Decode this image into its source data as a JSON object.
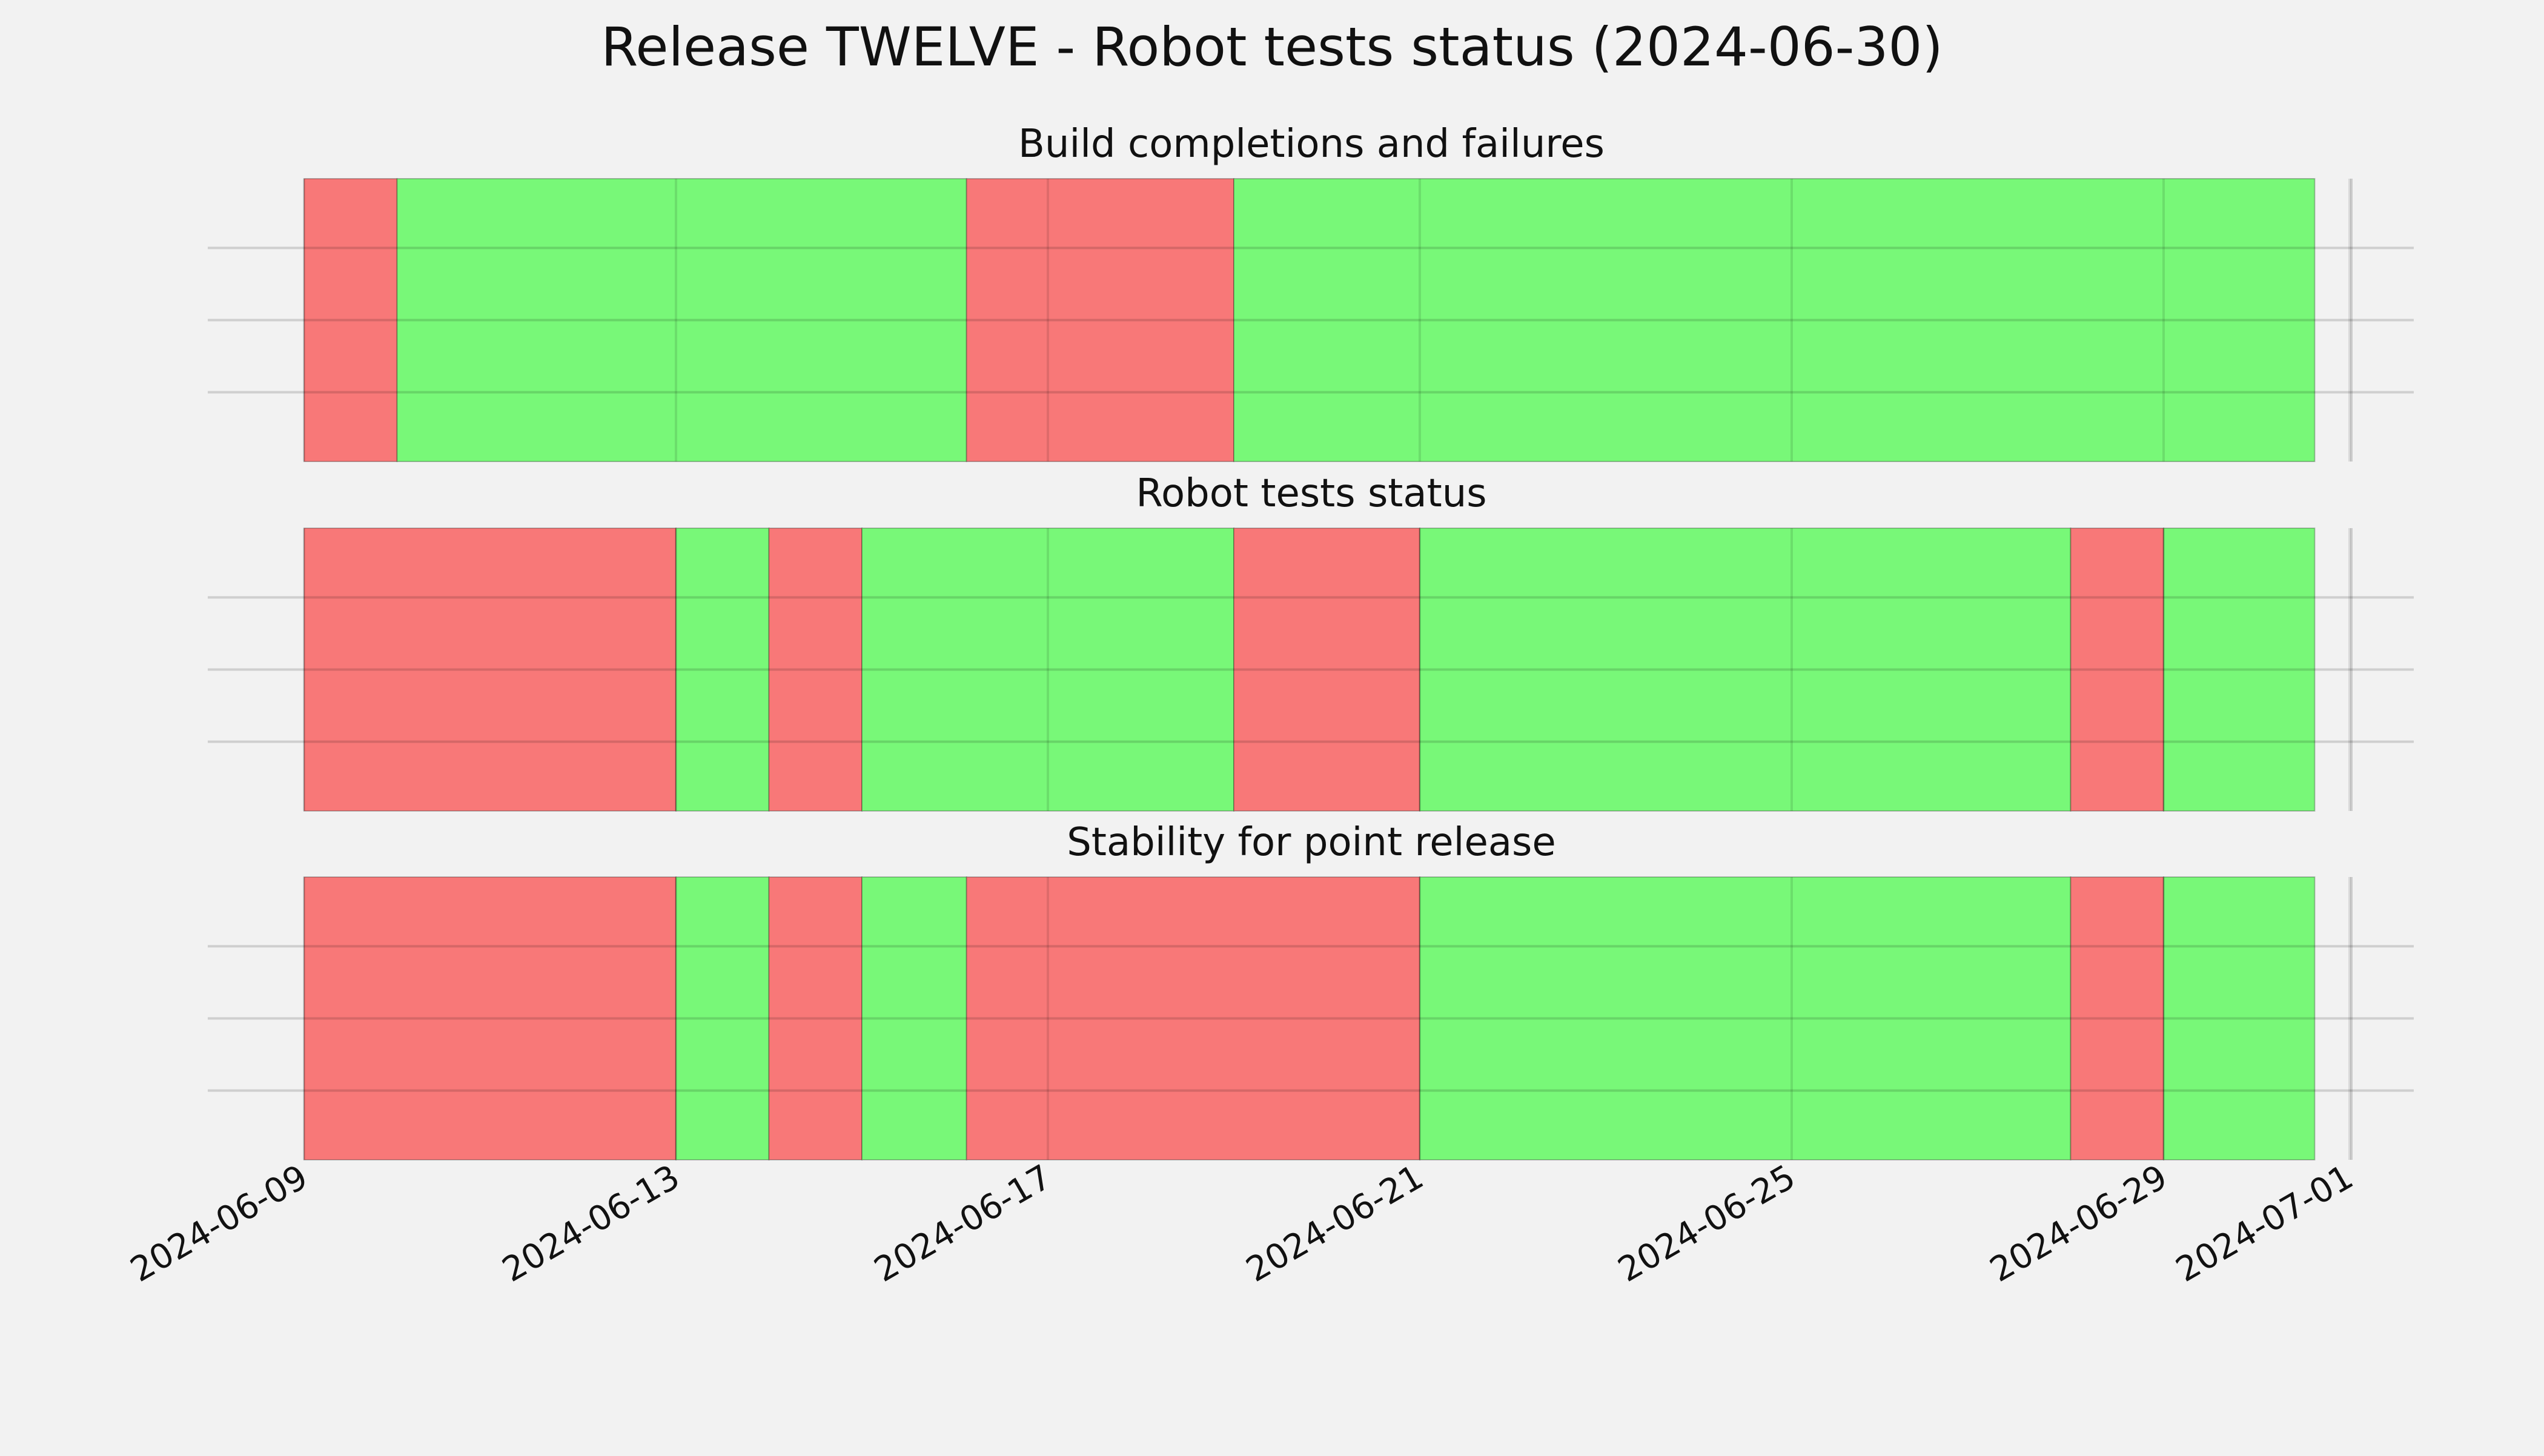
{
  "chart_data": {
    "type": "timeline",
    "title": "Release TWELVE - Robot tests status (2024-06-30)",
    "x_axis": {
      "type": "date",
      "range": [
        "2024-06-09",
        "2024-07-01"
      ],
      "ticks": [
        "2024-06-09",
        "2024-06-13",
        "2024-06-17",
        "2024-06-21",
        "2024-06-25",
        "2024-06-29",
        "2024-07-01"
      ]
    },
    "grid": true,
    "status_colors": {
      "fail": "#f87878",
      "pass": "#78f878"
    },
    "panels": [
      {
        "title": "Build completions and failures",
        "segments": [
          {
            "start": "2024-06-09",
            "end": "2024-06-10",
            "status": "fail"
          },
          {
            "start": "2024-06-10",
            "end": "2024-06-16 03:00",
            "status": "pass"
          },
          {
            "start": "2024-06-16 03:00",
            "end": "2024-06-19",
            "status": "fail"
          },
          {
            "start": "2024-06-19",
            "end": "2024-06-30 15:00",
            "status": "pass"
          }
        ]
      },
      {
        "title": "Robot tests status",
        "segments": [
          {
            "start": "2024-06-09",
            "end": "2024-06-13",
            "status": "fail"
          },
          {
            "start": "2024-06-13",
            "end": "2024-06-14",
            "status": "pass"
          },
          {
            "start": "2024-06-14",
            "end": "2024-06-15",
            "status": "fail"
          },
          {
            "start": "2024-06-15",
            "end": "2024-06-19",
            "status": "pass"
          },
          {
            "start": "2024-06-19",
            "end": "2024-06-21",
            "status": "fail"
          },
          {
            "start": "2024-06-21",
            "end": "2024-06-28",
            "status": "pass"
          },
          {
            "start": "2024-06-28",
            "end": "2024-06-29",
            "status": "fail"
          },
          {
            "start": "2024-06-29",
            "end": "2024-06-30 15:00",
            "status": "pass"
          }
        ]
      },
      {
        "title": "Stability for point release",
        "segments": [
          {
            "start": "2024-06-09",
            "end": "2024-06-13",
            "status": "fail"
          },
          {
            "start": "2024-06-13",
            "end": "2024-06-14",
            "status": "pass"
          },
          {
            "start": "2024-06-14",
            "end": "2024-06-15",
            "status": "fail"
          },
          {
            "start": "2024-06-15",
            "end": "2024-06-16 03:00",
            "status": "pass"
          },
          {
            "start": "2024-06-16 03:00",
            "end": "2024-06-21",
            "status": "fail"
          },
          {
            "start": "2024-06-21",
            "end": "2024-06-28",
            "status": "pass"
          },
          {
            "start": "2024-06-28",
            "end": "2024-06-29",
            "status": "fail"
          },
          {
            "start": "2024-06-29",
            "end": "2024-06-30 15:00",
            "status": "pass"
          }
        ]
      }
    ]
  }
}
